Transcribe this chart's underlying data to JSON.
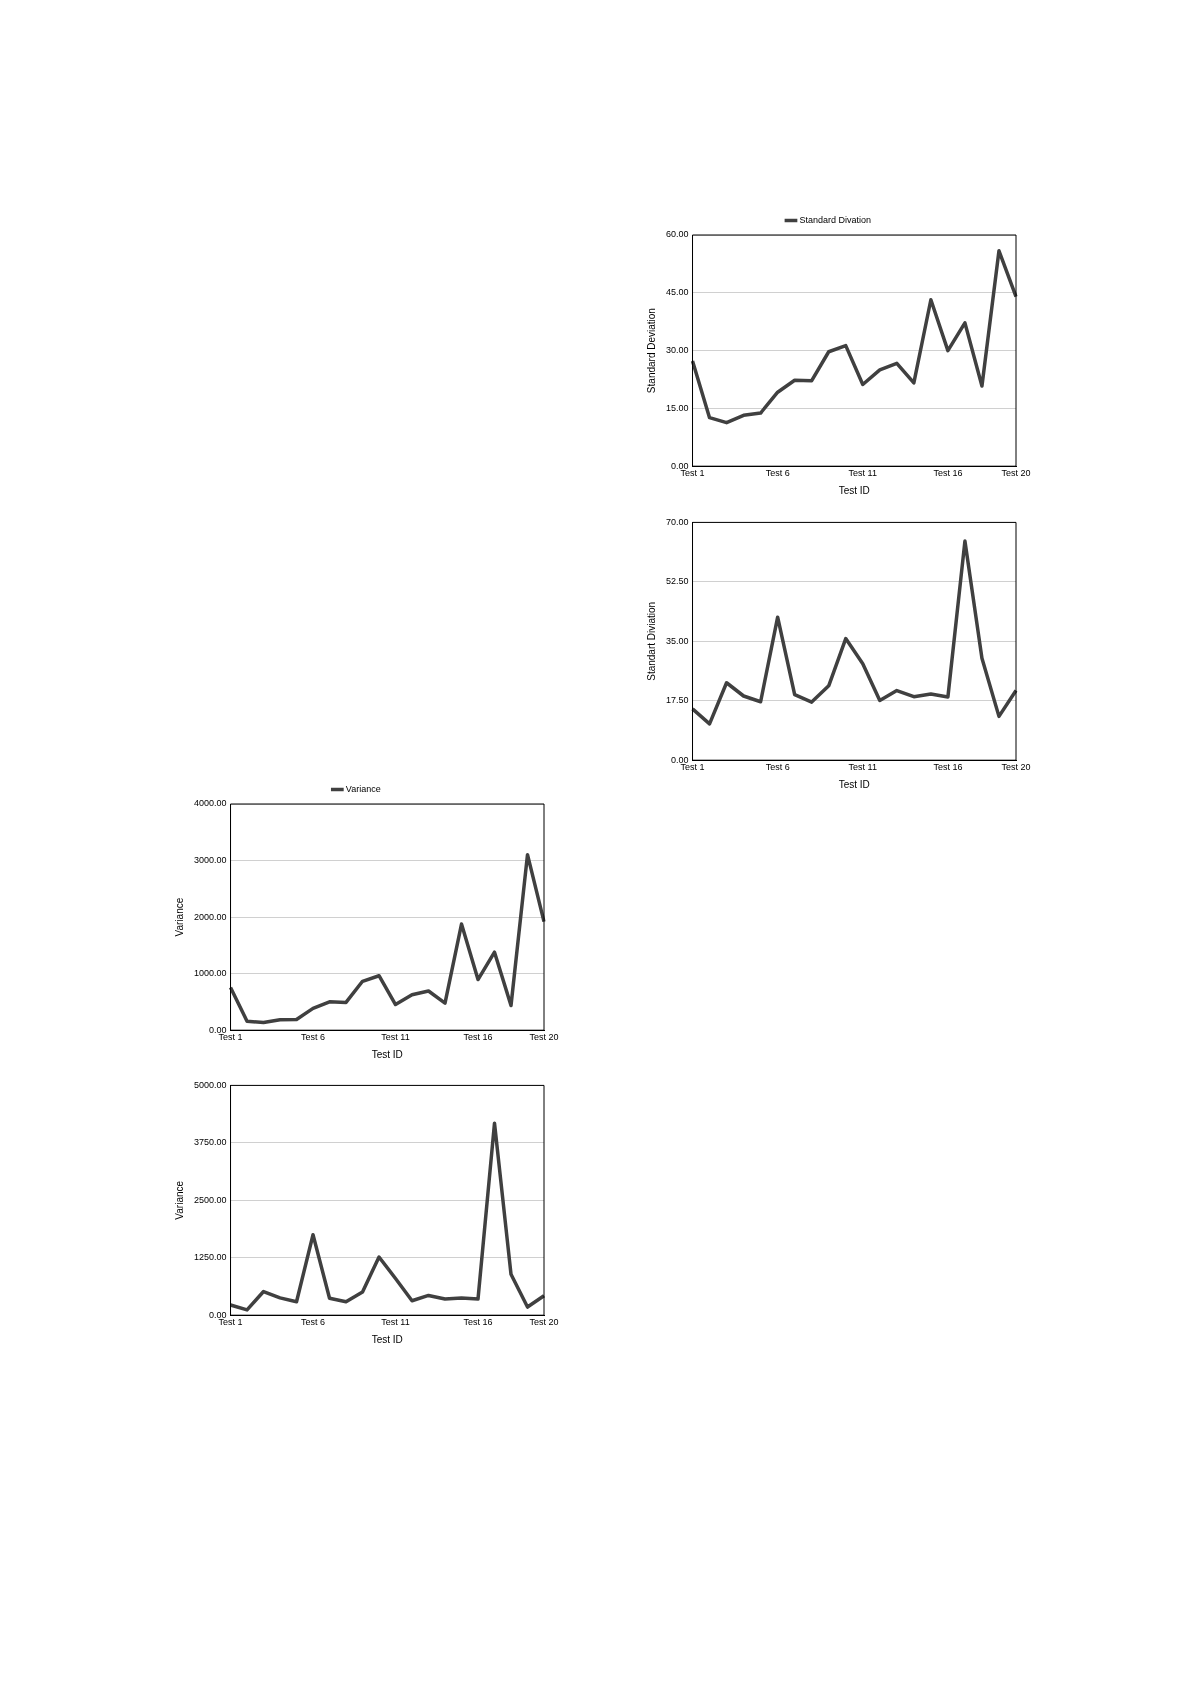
{
  "chart_data": [
    {
      "type": "line",
      "xlabel": "Test ID",
      "ylabel": "Standard Deviation",
      "categories": [
        "Test 1",
        null,
        null,
        null,
        null,
        "Test 6",
        null,
        null,
        null,
        null,
        "Test 11",
        null,
        null,
        null,
        null,
        "Test 16",
        null,
        null,
        null,
        "Test 20"
      ],
      "series": [
        {
          "name": "Standard Divation",
          "color": "#404040",
          "values": [
            27.3,
            12.6,
            11.3,
            13.2,
            13.8,
            19.2,
            22.3,
            22.2,
            29.7,
            31.3,
            21.2,
            25.0,
            26.7,
            21.6,
            43.2,
            30.0,
            37.2,
            20.8,
            55.9,
            44.0
          ]
        }
      ],
      "ylim": [
        0,
        60
      ],
      "yticks": [
        {
          "value": 0,
          "label": "0.00"
        },
        {
          "value": 15,
          "label": "15.00"
        },
        {
          "value": 30,
          "label": "30.00"
        },
        {
          "value": 45,
          "label": "45.00"
        },
        {
          "value": 60,
          "label": "60.00"
        }
      ],
      "grid": "y",
      "legend": "top",
      "marker": "none",
      "line_style": "solid"
    },
    {
      "type": "line",
      "xlabel": "Test ID",
      "ylabel": "Standart Diviation",
      "categories": [
        "Test 1",
        null,
        null,
        null,
        null,
        "Test 6",
        null,
        null,
        null,
        null,
        "Test 11",
        null,
        null,
        null,
        null,
        "Test 16",
        null,
        null,
        null,
        "Test 20"
      ],
      "series": [
        {
          "color": "#404040",
          "values": [
            15.1,
            10.7,
            22.8,
            18.9,
            17.2,
            42.1,
            19.3,
            17.1,
            21.9,
            35.8,
            28.4,
            17.6,
            20.5,
            18.7,
            19.5,
            18.6,
            64.5,
            30.0,
            12.9,
            20.5
          ]
        }
      ],
      "ylim": [
        0,
        70
      ],
      "yticks": [
        {
          "value": 0,
          "label": "0.00"
        },
        {
          "value": 17.5,
          "label": "17.50"
        },
        {
          "value": 35,
          "label": "35.00"
        },
        {
          "value": 52.5,
          "label": "52.50"
        },
        {
          "value": 70,
          "label": "70.00"
        }
      ],
      "grid": "y",
      "legend": false,
      "marker": "none",
      "line_style": "solid"
    },
    {
      "type": "line",
      "xlabel": "Test ID",
      "ylabel": "Variance",
      "categories": [
        "Test 1",
        null,
        null,
        null,
        null,
        "Test 6",
        null,
        null,
        null,
        null,
        "Test 11",
        null,
        null,
        null,
        null,
        "Test 16",
        null,
        null,
        null,
        "Test 20"
      ],
      "series": [
        {
          "name": "Variance",
          "color": "#404040",
          "values": [
            755,
            160,
            135,
            184,
            190,
            386,
            503,
            491,
            865,
            963,
            454,
            626,
            693,
            478,
            1877,
            896,
            1380,
            436,
            3104,
            1920
          ]
        }
      ],
      "ylim": [
        0,
        4000
      ],
      "yticks": [
        {
          "value": 0,
          "label": "0.00"
        },
        {
          "value": 1000,
          "label": "1000.00"
        },
        {
          "value": 2000,
          "label": "2000.00"
        },
        {
          "value": 3000,
          "label": "3000.00"
        },
        {
          "value": 4000,
          "label": "4000.00"
        }
      ],
      "grid": "y",
      "legend": "top",
      "marker": "none",
      "line_style": "solid"
    },
    {
      "type": "line",
      "xlabel": "Test ID",
      "ylabel": "Variance",
      "categories": [
        "Test 1",
        null,
        null,
        null,
        null,
        "Test 6",
        null,
        null,
        null,
        null,
        "Test 11",
        null,
        null,
        null,
        null,
        "Test 16",
        null,
        null,
        null,
        "Test 20"
      ],
      "series": [
        {
          "color": "#404040",
          "values": [
            223,
            115,
            515,
            376,
            292,
            1751,
            369,
            292,
            507,
            1267,
            799,
            315,
            430,
            353,
            376,
            353,
            4178,
            891,
            177,
            422
          ]
        }
      ],
      "ylim": [
        0,
        5000
      ],
      "yticks": [
        {
          "value": 0,
          "label": "0.00"
        },
        {
          "value": 1250,
          "label": "1250.00"
        },
        {
          "value": 2500,
          "label": "2500.00"
        },
        {
          "value": 3750,
          "label": "3750.00"
        },
        {
          "value": 5000,
          "label": "5000.00"
        }
      ],
      "grid": "y",
      "legend": false,
      "marker": "none",
      "line_style": "solid"
    }
  ]
}
